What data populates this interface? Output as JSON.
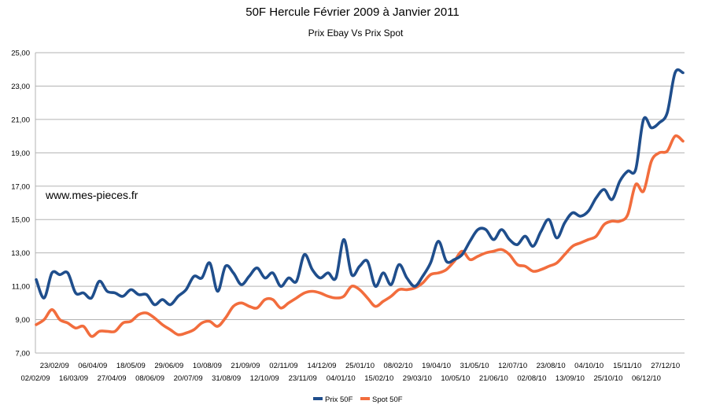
{
  "chart_data": {
    "type": "line",
    "title": "50F Hercule Février 2009 à Janvier 2011",
    "subtitle": "Prix Ebay Vs Prix Spot",
    "annotation": "www.mes-pieces.fr",
    "ylim": [
      7,
      25
    ],
    "y_ticks": [
      "25,00",
      "23,00",
      "21,00",
      "19,00",
      "17,00",
      "15,00",
      "13,00",
      "11,00",
      "9,00",
      "7,00"
    ],
    "x_ticks_upper": [
      "23/02/09",
      "06/04/09",
      "18/05/09",
      "29/06/09",
      "10/08/09",
      "21/09/09",
      "02/11/09",
      "14/12/09",
      "25/01/10",
      "08/02/10",
      "19/04/10",
      "31/05/10",
      "12/07/10",
      "23/08/10",
      "04/10/10",
      "15/11/10",
      "27/12/10"
    ],
    "x_ticks_lower": [
      "02/02/09",
      "16/03/09",
      "27/04/09",
      "08/06/09",
      "20/07/09",
      "31/08/09",
      "12/10/09",
      "23/11/09",
      "04/01/10",
      "15/02/10",
      "29/03/10",
      "10/05/10",
      "21/06/10",
      "02/08/10",
      "13/09/10",
      "25/10/10",
      "06/12/10"
    ],
    "grid": "horizontal",
    "legend_position": "bottom",
    "series": [
      {
        "name": "Prix 50F",
        "color": "#1f4e8c",
        "values": [
          11.4,
          10.3,
          11.8,
          11.7,
          11.8,
          10.6,
          10.6,
          10.3,
          11.3,
          10.7,
          10.6,
          10.4,
          10.8,
          10.5,
          10.5,
          9.9,
          10.2,
          9.9,
          10.4,
          10.8,
          11.6,
          11.5,
          12.4,
          10.7,
          12.2,
          11.8,
          11.1,
          11.6,
          12.1,
          11.5,
          11.8,
          11.0,
          11.5,
          11.3,
          12.9,
          12.0,
          11.5,
          11.8,
          11.5,
          13.8,
          11.7,
          12.2,
          12.5,
          11.0,
          11.8,
          11.1,
          12.3,
          11.5,
          11.0,
          11.6,
          12.4,
          13.7,
          12.5,
          12.6,
          12.9,
          13.7,
          14.4,
          14.4,
          13.8,
          14.4,
          13.8,
          13.5,
          14.0,
          13.4,
          14.3,
          15.0,
          13.9,
          14.8,
          15.4,
          15.2,
          15.5,
          16.3,
          16.8,
          16.2,
          17.3,
          17.9,
          18.0,
          21.0,
          20.5,
          20.8,
          21.4,
          23.8,
          23.8
        ]
      },
      {
        "name": "Spot 50F",
        "color": "#f26d3d",
        "values": [
          8.7,
          9.0,
          9.6,
          9.0,
          8.8,
          8.5,
          8.6,
          8.0,
          8.3,
          8.3,
          8.3,
          8.8,
          8.9,
          9.3,
          9.4,
          9.1,
          8.7,
          8.4,
          8.1,
          8.2,
          8.4,
          8.8,
          8.9,
          8.6,
          9.1,
          9.8,
          10.0,
          9.8,
          9.7,
          10.2,
          10.2,
          9.7,
          10.0,
          10.3,
          10.6,
          10.7,
          10.6,
          10.4,
          10.3,
          10.4,
          11.0,
          10.8,
          10.3,
          9.8,
          10.1,
          10.4,
          10.8,
          10.8,
          10.9,
          11.2,
          11.7,
          11.8,
          12.0,
          12.5,
          13.1,
          12.6,
          12.8,
          13.0,
          13.1,
          13.2,
          12.9,
          12.3,
          12.2,
          11.9,
          12.0,
          12.2,
          12.4,
          12.9,
          13.4,
          13.6,
          13.8,
          14.0,
          14.7,
          14.9,
          14.9,
          15.3,
          17.1,
          16.7,
          18.5,
          19.0,
          19.1,
          20.0,
          19.7
        ]
      }
    ]
  }
}
